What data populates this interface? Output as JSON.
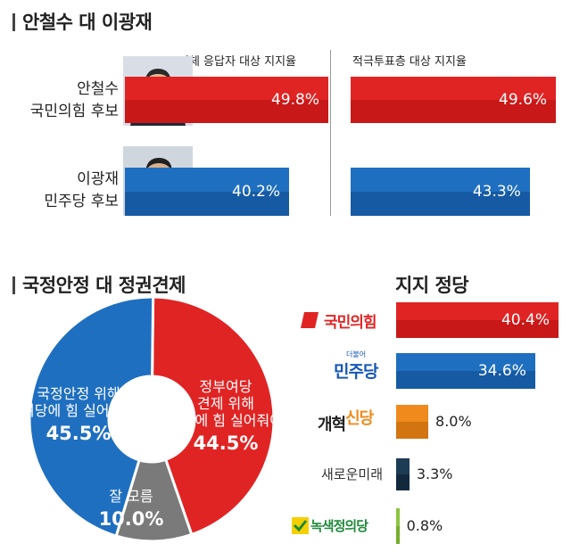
{
  "sections": {
    "candidates_title": "안철수 대 이광재",
    "donut_title": "국정안정 대 정권견제",
    "party_title": "지지 정당"
  },
  "candidates": {
    "col1_header": "전체 응답자 대상 지지율",
    "col2_header": "적극투표층 대상 지지율",
    "people": [
      {
        "name": "안철수",
        "party": "국민의힘 후보",
        "all": 49.8,
        "all_label": "49.8%",
        "active": 49.6,
        "active_label": "49.6%",
        "color": "#e02424",
        "color_dark": "#c81818"
      },
      {
        "name": "이광재",
        "party": "민주당 후보",
        "all": 40.2,
        "all_label": "40.2%",
        "active": 43.3,
        "active_label": "43.3%",
        "color": "#1f6fc0",
        "color_dark": "#165aa3"
      }
    ]
  },
  "chart_data": [
    {
      "type": "bar",
      "orientation": "horizontal",
      "title": "안철수 대 이광재",
      "categories": [
        "안철수 국민의힘 후보",
        "이광재 민주당 후보"
      ],
      "series": [
        {
          "name": "전체 응답자 대상 지지율",
          "values": [
            49.8,
            40.2
          ]
        },
        {
          "name": "적극투표층 대상 지지율",
          "values": [
            49.6,
            43.3
          ]
        }
      ],
      "unit": "%"
    },
    {
      "type": "pie",
      "title": "국정안정 대 정권견제",
      "labels": [
        "국정안정 위해 여당에 힘 실어줘야",
        "정부여당 견제 위해 야당에 힘 실어줘야",
        "잘 모름"
      ],
      "values": [
        45.5,
        44.5,
        10.0
      ],
      "colors": [
        "#1f6fc0",
        "#e02424",
        "#7a7a7a"
      ],
      "donut": true
    },
    {
      "type": "bar",
      "orientation": "horizontal",
      "title": "지지 정당",
      "categories": [
        "국민의힘",
        "민주당",
        "개혁신당",
        "새로운미래",
        "녹색정의당"
      ],
      "values": [
        40.4,
        34.6,
        8.0,
        3.3,
        0.8
      ],
      "unit": "%"
    }
  ],
  "donut": {
    "segments": [
      {
        "lines": [
          "국정안정 위해",
          "여당에 힘 실어줘야"
        ],
        "value_label": "45.5%",
        "color": "#1f6fc0"
      },
      {
        "lines": [
          "정부여당",
          "견제 위해",
          "야당에 힘 실어줘야"
        ],
        "value_label": "44.5%",
        "color": "#e02424"
      },
      {
        "lines": [
          "잘 모름"
        ],
        "value_label": "10.0%",
        "color": "#7a7a7a"
      }
    ]
  },
  "parties": [
    {
      "name": "국민의힘",
      "value": 40.4,
      "label": "40.4%",
      "color": "#e02424",
      "color_dark": "#c81818",
      "name_color": "#e02424"
    },
    {
      "name": "민주당",
      "small_text": "더불어",
      "value": 34.6,
      "label": "34.6%",
      "color": "#1f6fc0",
      "color_dark": "#165aa3",
      "name_color": "#1657b8"
    },
    {
      "name_part1": "개혁",
      "name_part2": "신당",
      "value": 8.0,
      "label": "8.0%",
      "color": "#f08a1c",
      "color_dark": "#d27410",
      "name_color": "#222222",
      "accent_color": "#f08a1c"
    },
    {
      "name": "새로운미래",
      "value": 3.3,
      "label": "3.3%",
      "color": "#1c3c56",
      "color_dark": "#12293d",
      "name_color": "#333333"
    },
    {
      "name": "녹색정의당",
      "value": 0.8,
      "label": "0.8%",
      "color": "#8cc63f",
      "color_dark": "#76ad2c",
      "name_color": "#1f8a3a"
    }
  ]
}
